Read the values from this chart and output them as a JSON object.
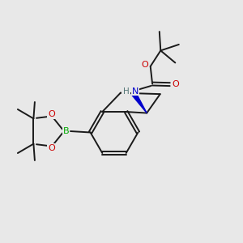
{
  "background_color": "#e8e8e8",
  "bond_color": "#1a1a1a",
  "oxygen_color": "#cc0000",
  "nitrogen_color": "#0000cc",
  "boron_color": "#00aa00",
  "figsize": [
    3.0,
    3.0
  ],
  "dpi": 100,
  "xlim": [
    0,
    10
  ],
  "ylim": [
    0,
    10
  ]
}
